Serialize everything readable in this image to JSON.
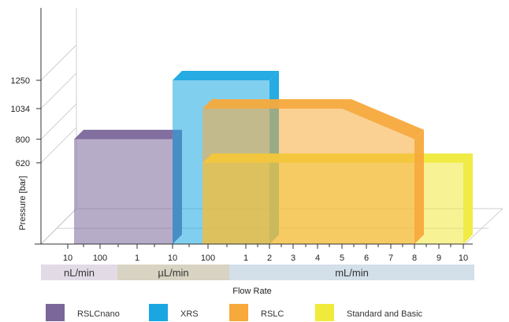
{
  "chart_data": {
    "type": "area",
    "xlabel": "Flow Rate",
    "ylabel": "Pressure [bar]",
    "yticks": [
      620,
      800,
      1034,
      1250
    ],
    "xticks": [
      "10",
      "100",
      "1",
      "10",
      "100",
      "1",
      "2",
      "3",
      "4",
      "5",
      "6",
      "7",
      "8",
      "9",
      "10"
    ],
    "unit_bands": [
      {
        "label": "nL/min",
        "color": "#e2dbe6"
      },
      {
        "label": "µL/min",
        "color": "#d8d3c2"
      },
      {
        "label": "mL/min",
        "color": "#d3dfe9"
      }
    ],
    "series": [
      {
        "name": "RSLCnano",
        "color": "#7b679a",
        "x_from": "10 nL/min",
        "x_to": "10 µL/min",
        "max_pressure": 800
      },
      {
        "name": "XRS",
        "color": "#1aa7e1",
        "x_from": "10 µL/min",
        "x_to": "2 mL/min",
        "max_pressure": 1250
      },
      {
        "name": "RSLC",
        "color": "#f7a93b",
        "x_from": "100 µL/min",
        "x_to": "8 mL/min",
        "max_pressure_profile": [
          [
            5,
            1034
          ],
          [
            8,
            800
          ]
        ]
      },
      {
        "name": "Standard and Basic",
        "color": "#f0ea3c",
        "x_from": "100 µL/min",
        "x_to": "10 mL/min",
        "max_pressure": 620
      }
    ],
    "legend_position": "bottom"
  }
}
